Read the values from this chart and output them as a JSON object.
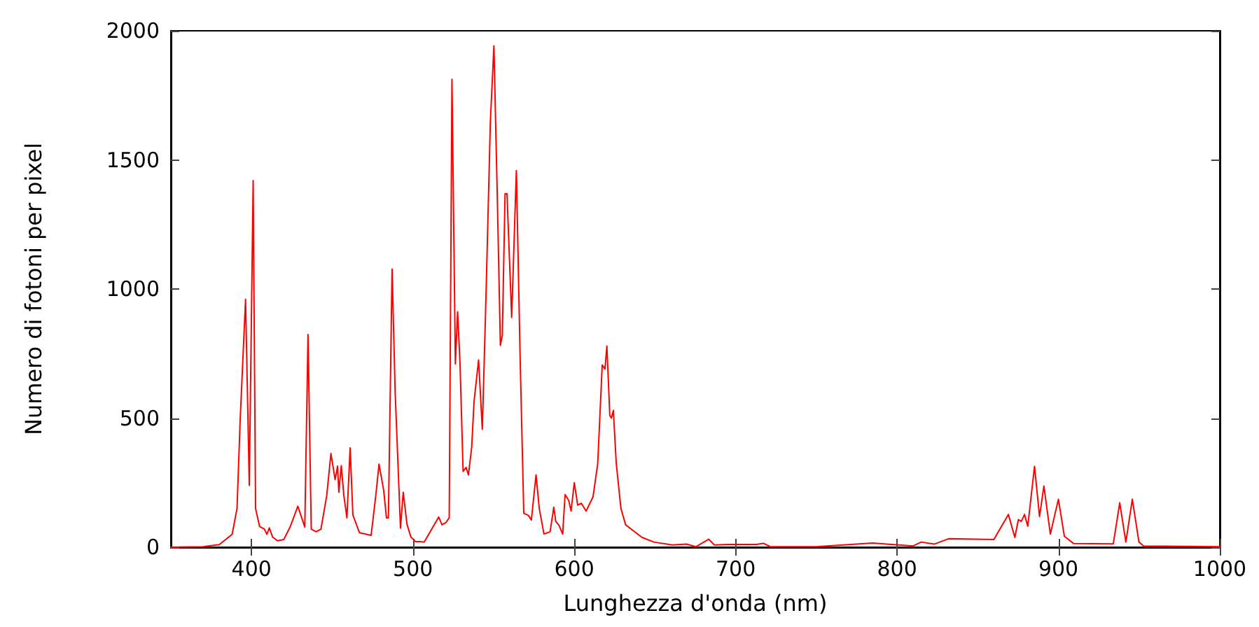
{
  "chart_data": {
    "type": "line",
    "xlabel": "Lunghezza d'onda (nm)",
    "ylabel": "Numero di fotoni per pixel",
    "xlim": [
      350,
      1000
    ],
    "ylim": [
      0,
      2000
    ],
    "xticks": [
      400,
      500,
      600,
      700,
      800,
      900,
      1000
    ],
    "yticks": [
      0,
      500,
      1000,
      1500,
      2000
    ],
    "marker": "none",
    "line_style": "solid",
    "series": [
      {
        "color": "#ff0000",
        "x": [
          350,
          370,
          380,
          388,
          391,
          393,
          396.3,
          398.6,
          401,
          402.5,
          405,
          408,
          409.5,
          411,
          413,
          416,
          420,
          424,
          428.7,
          433,
          435,
          437,
          440,
          443,
          446.6,
          449.2,
          451.8,
          453.3,
          454.1,
          455.6,
          457.2,
          459.1,
          461.1,
          462.8,
          466.9,
          474.1,
          477,
          479,
          481.9,
          483.6,
          484.8,
          487.1,
          489,
          492.3,
          494,
          496.3,
          498.7,
          501.6,
          504.5,
          507,
          516,
          518,
          520.4,
          522.5,
          524.2,
          526.3,
          527.7,
          529.2,
          531.1,
          533,
          534.4,
          536.4,
          537.9,
          540.7,
          543,
          545.1,
          548,
          550.2,
          552.4,
          554.2,
          555.4,
          557.1,
          558.3,
          561.2,
          564.1,
          566.4,
          568.7,
          571.6,
          573.4,
          576.3,
          578.3,
          581.2,
          585,
          587.3,
          588.5,
          590.5,
          592.8,
          594.3,
          596.6,
          598,
          600,
          602.1,
          604.4,
          607.3,
          611.6,
          614.5,
          617.3,
          619,
          620.2,
          622,
          623,
          624.2,
          626,
          628.9,
          631.8,
          636.3,
          642,
          649.3,
          660.8,
          669.5,
          675.3,
          683.3,
          686.8,
          695.5,
          712.8,
          717.2,
          721.5,
          750,
          785,
          810,
          815,
          823,
          832,
          860,
          869,
          873,
          875.2,
          877,
          879,
          881,
          885.2,
          888.3,
          891,
          895,
          900,
          903.7,
          909.5,
          934,
          938,
          941.8,
          945.8,
          949.9,
          952.8,
          1000
        ],
        "values": [
          0,
          2,
          10,
          50,
          150,
          500,
          960,
          240,
          1420,
          150,
          80,
          70,
          50,
          75,
          40,
          25,
          30,
          80,
          159,
          78,
          824,
          70,
          60,
          70,
          200,
          363,
          262,
          314,
          213,
          316,
          200,
          114,
          385,
          125,
          56,
          46,
          200,
          322,
          220,
          114,
          114,
          1077,
          600,
          74,
          213,
          90,
          40,
          22,
          22,
          20,
          117,
          87,
          95,
          114,
          1812,
          710,
          912,
          710,
          294,
          309,
          280,
          385,
          565,
          725,
          457,
          927,
          1649,
          1942,
          1324,
          782,
          820,
          1369,
          1369,
          890,
          1459,
          746,
          132,
          123,
          105,
          280,
          150,
          51,
          60,
          155,
          100,
          85,
          51,
          204,
          180,
          140,
          250,
          163,
          170,
          140,
          195,
          322,
          706,
          690,
          779,
          511,
          500,
          530,
          325,
          150,
          87,
          65,
          38,
          20,
          9,
          12,
          2,
          31,
          9,
          11,
          11,
          15,
          2,
          2,
          16,
          5,
          20,
          12,
          33,
          30,
          127,
          38,
          107,
          100,
          127,
          81,
          313,
          119,
          237,
          51,
          186,
          42,
          14,
          13,
          172,
          20,
          186,
          20,
          5,
          2
        ]
      }
    ]
  }
}
